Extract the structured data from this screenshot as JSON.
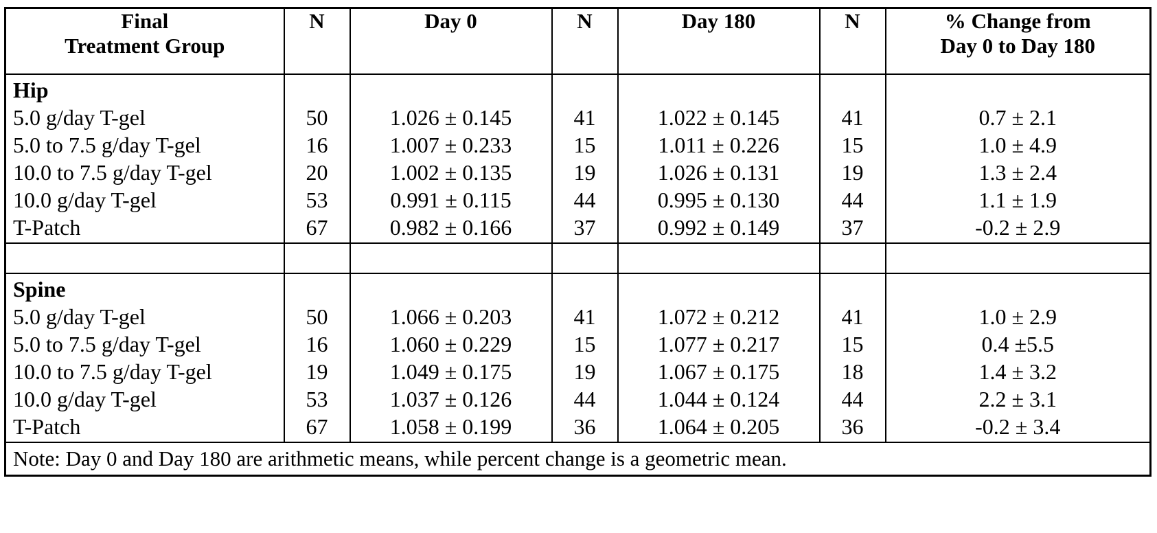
{
  "table": {
    "headers": {
      "group_line1": "Final",
      "group_line2": "Treatment Group",
      "n1": "N",
      "day0": "Day 0",
      "n2": "N",
      "day180": "Day 180",
      "n3": "N",
      "pct_line1": "% Change from",
      "pct_line2": "Day 0 to Day 180"
    },
    "sections": [
      {
        "title": "Hip",
        "rows": [
          {
            "group": "5.0 g/day T-gel",
            "n0": "50",
            "day0": "1.026 ± 0.145",
            "n180": "41",
            "day180": "1.022 ± 0.145",
            "npct": "41",
            "pct": "0.7 ± 2.1"
          },
          {
            "group": "5.0 to 7.5 g/day T-gel",
            "n0": "16",
            "day0": "1.007 ± 0.233",
            "n180": "15",
            "day180": "1.011 ± 0.226",
            "npct": "15",
            "pct": "1.0 ± 4.9"
          },
          {
            "group": "10.0 to 7.5 g/day T-gel",
            "n0": "20",
            "day0": "1.002 ± 0.135",
            "n180": "19",
            "day180": "1.026 ± 0.131",
            "npct": "19",
            "pct": "1.3 ± 2.4"
          },
          {
            "group": "10.0 g/day T-gel",
            "n0": "53",
            "day0": "0.991 ± 0.115",
            "n180": "44",
            "day180": "0.995 ± 0.130",
            "npct": "44",
            "pct": "1.1 ± 1.9"
          },
          {
            "group": "T-Patch",
            "n0": "67",
            "day0": "0.982 ± 0.166",
            "n180": "37",
            "day180": "0.992 ± 0.149",
            "npct": "37",
            "pct": "-0.2 ± 2.9"
          }
        ]
      },
      {
        "title": "Spine",
        "rows": [
          {
            "group": "5.0 g/day T-gel",
            "n0": "50",
            "day0": "1.066 ± 0.203",
            "n180": "41",
            "day180": "1.072 ± 0.212",
            "npct": "41",
            "pct": "1.0 ± 2.9"
          },
          {
            "group": "5.0 to 7.5 g/day T-gel",
            "n0": "16",
            "day0": "1.060 ± 0.229",
            "n180": "15",
            "day180": "1.077 ± 0.217",
            "npct": "15",
            "pct": "0.4 ±5.5"
          },
          {
            "group": "10.0 to 7.5 g/day T-gel",
            "n0": "19",
            "day0": "1.049 ± 0.175",
            "n180": "19",
            "day180": "1.067 ± 0.175",
            "npct": "18",
            "pct": "1.4 ± 3.2"
          },
          {
            "group": "10.0 g/day T-gel",
            "n0": "53",
            "day0": "1.037 ± 0.126",
            "n180": "44",
            "day180": "1.044 ± 0.124",
            "npct": "44",
            "pct": "2.2 ± 3.1"
          },
          {
            "group": "T-Patch",
            "n0": "67",
            "day0": "1.058 ± 0.199",
            "n180": "36",
            "day180": "1.064 ± 0.205",
            "npct": "36",
            "pct": "-0.2 ± 3.4"
          }
        ]
      }
    ],
    "note": "Note:  Day 0 and Day 180 are arithmetic means, while percent change is a geometric mean."
  }
}
